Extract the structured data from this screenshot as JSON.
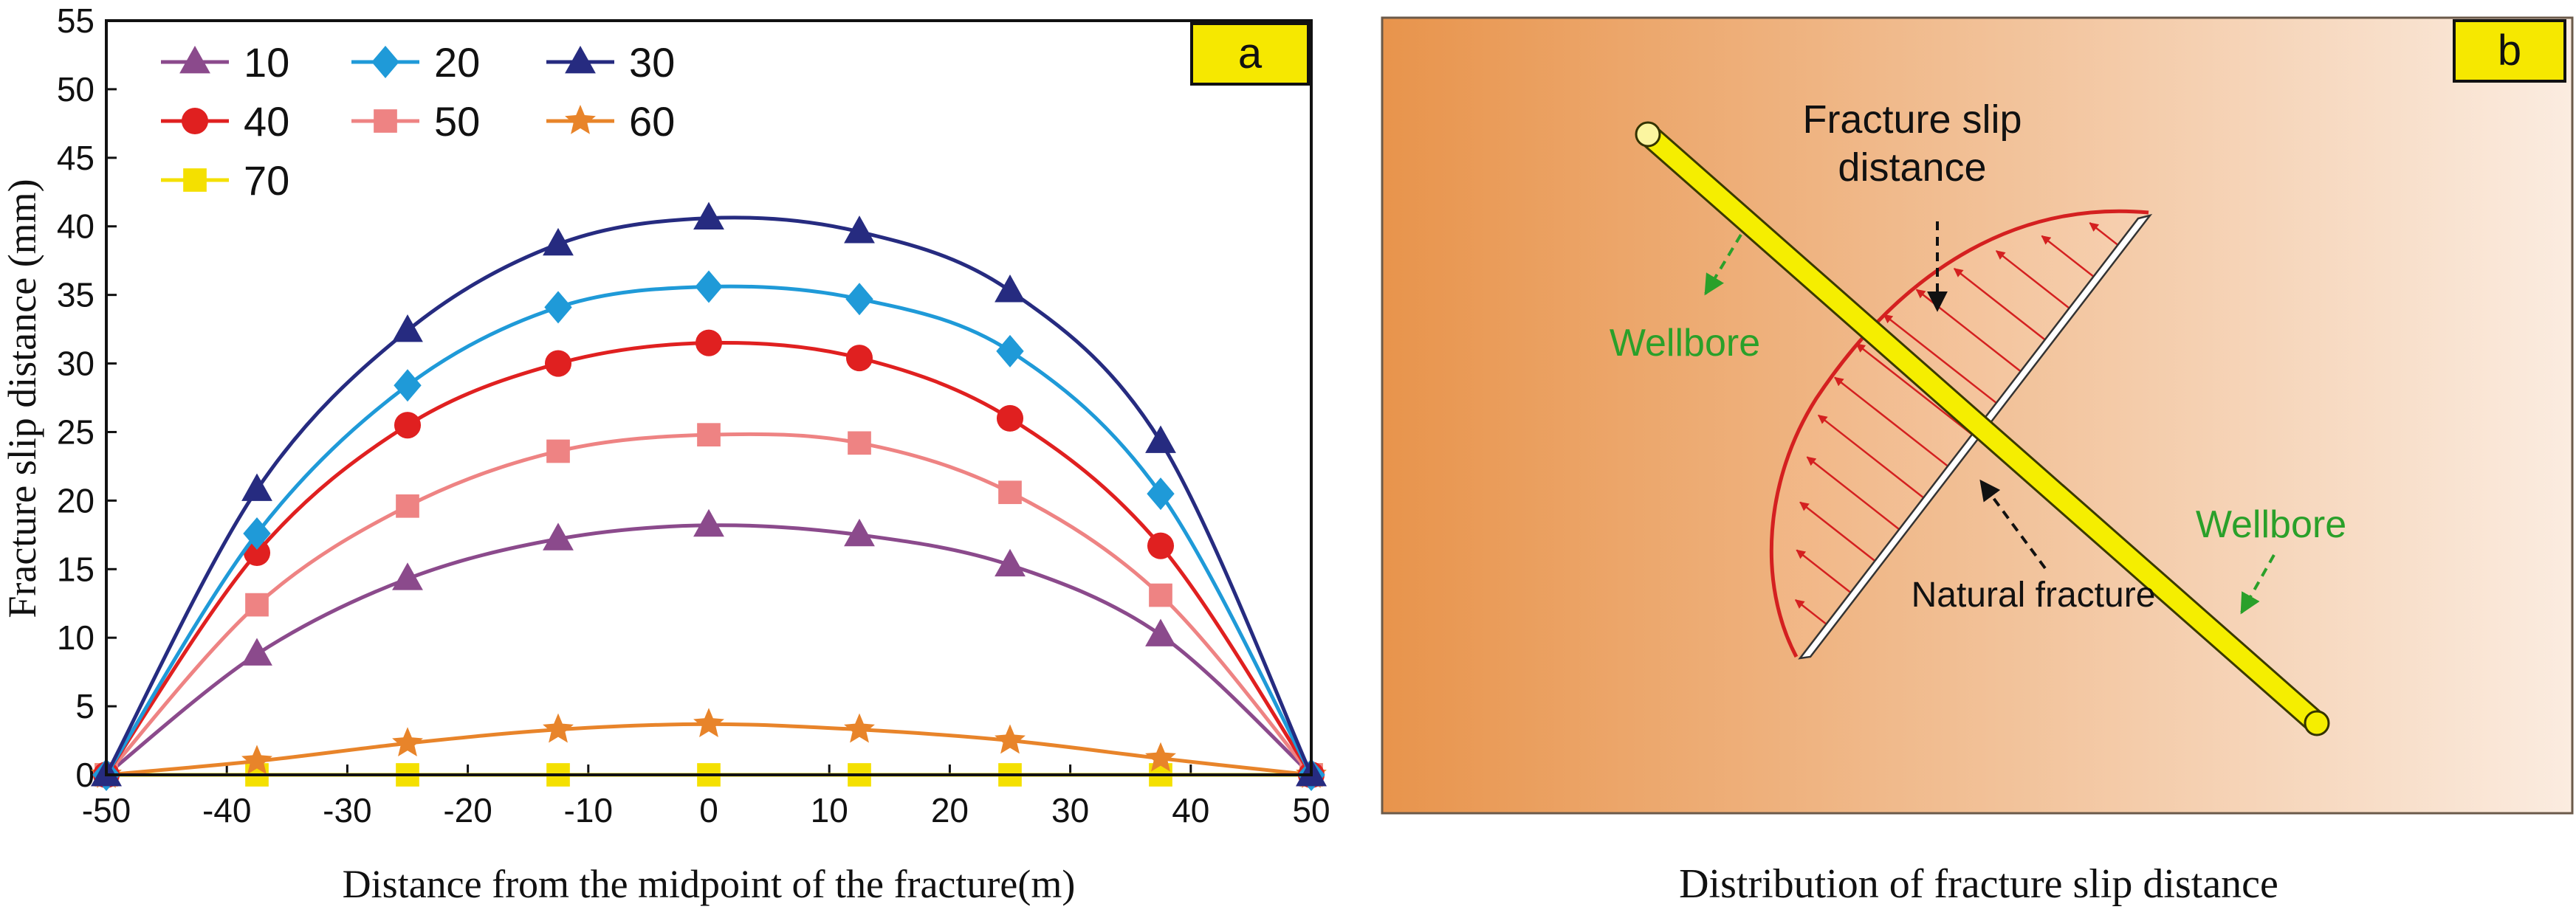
{
  "chart_data": {
    "type": "line",
    "panel_label": "a",
    "xlabel": "Distance from the midpoint of the fracture(m)",
    "ylabel": "Fracture slip distance (mm)",
    "xlim": [
      -50,
      50
    ],
    "ylim": [
      0,
      55
    ],
    "xticks": [
      -50,
      -40,
      -30,
      -20,
      -10,
      0,
      10,
      20,
      30,
      40,
      50
    ],
    "yticks": [
      0,
      5,
      10,
      15,
      20,
      25,
      30,
      35,
      40,
      45,
      50,
      55
    ],
    "x": [
      -50,
      -37.5,
      -25,
      -12.5,
      0,
      12.5,
      25,
      37.5,
      50
    ],
    "series": [
      {
        "name": "10",
        "color": "#8b4a8c",
        "marker": "triangle",
        "values": [
          0,
          8.8,
          14.3,
          17.2,
          18.2,
          17.5,
          15.3,
          10.2,
          0
        ]
      },
      {
        "name": "20",
        "color": "#1f9ad8",
        "marker": "diamond",
        "values": [
          0,
          17.6,
          28.4,
          34.1,
          35.6,
          34.7,
          30.9,
          20.5,
          0
        ]
      },
      {
        "name": "30",
        "color": "#262b80",
        "marker": "triangle",
        "values": [
          0,
          20.8,
          32.4,
          38.7,
          40.6,
          39.6,
          35.3,
          24.3,
          0
        ]
      },
      {
        "name": "40",
        "color": "#e02020",
        "marker": "circle",
        "values": [
          0,
          16.2,
          25.5,
          30.0,
          31.5,
          30.4,
          26.0,
          16.7,
          0
        ]
      },
      {
        "name": "50",
        "color": "#ee8383",
        "marker": "square",
        "values": [
          0,
          12.4,
          19.6,
          23.6,
          24.8,
          24.2,
          20.6,
          13.1,
          0
        ]
      },
      {
        "name": "60",
        "color": "#e8842a",
        "marker": "star",
        "values": [
          0,
          1.0,
          2.3,
          3.3,
          3.7,
          3.3,
          2.5,
          1.2,
          0
        ]
      },
      {
        "name": "70",
        "color": "#f4e000",
        "marker": "square",
        "values": [
          0,
          0,
          0,
          0,
          0,
          0,
          0,
          0,
          0
        ]
      }
    ]
  },
  "diagram": {
    "panel_label": "b",
    "caption": "Distribution of fracture slip distance",
    "label_slip": [
      "Fracture slip",
      "distance"
    ],
    "label_wellbore_left": "Wellbore",
    "label_wellbore_right": "Wellbore",
    "label_natural_fracture": "Natural fracture"
  },
  "colors": {
    "bg_dark": "#e8944c",
    "bg_light": "#fbece0",
    "wellbore": "#f5ee00",
    "slip_curve": "#d42020",
    "label_green": "#2aa02a",
    "panel_tag": "#f6e800"
  }
}
